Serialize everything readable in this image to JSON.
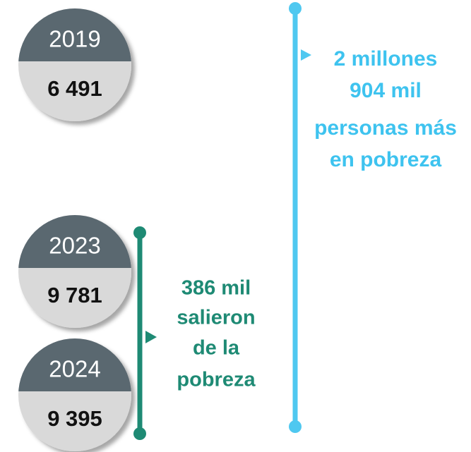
{
  "items": [
    {
      "year": "2019",
      "value": "6 491"
    },
    {
      "year": "2023",
      "value": "9 781"
    },
    {
      "year": "2024",
      "value": "9 395"
    }
  ],
  "increase": {
    "lines": [
      "2 millones",
      "904 mil",
      "personas más",
      "en pobreza"
    ]
  },
  "decrease": {
    "lines": [
      "386 mil",
      "salieron",
      "de la",
      "pobreza"
    ]
  }
}
